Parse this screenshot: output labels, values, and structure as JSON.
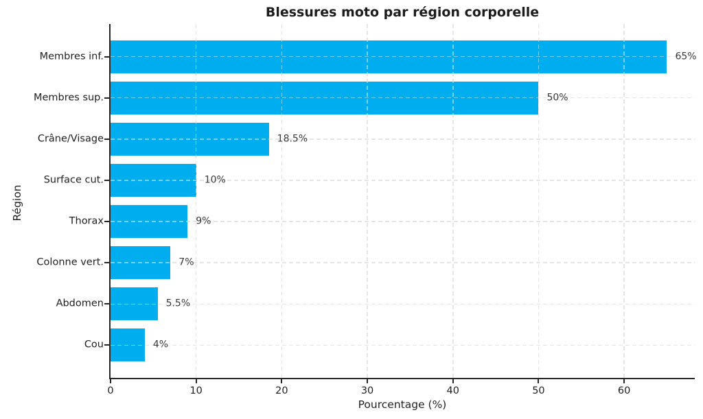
{
  "chart_data": {
    "type": "bar",
    "orientation": "horizontal",
    "title": "Blessures moto par région corporelle",
    "xlabel": "Pourcentage (%)",
    "ylabel": "Région",
    "categories": [
      "Membres inf.",
      "Membres sup.",
      "Crâne/Visage",
      "Surface cut.",
      "Thorax",
      "Colonne vert.",
      "Abdomen",
      "Cou"
    ],
    "values": [
      65,
      50,
      18.5,
      10,
      9,
      7,
      5.5,
      4
    ],
    "value_labels": [
      "65%",
      "50%",
      "18.5%",
      "10%",
      "9%",
      "7%",
      "5.5%",
      "4%"
    ],
    "x_ticks": [
      0,
      10,
      20,
      30,
      40,
      50,
      60
    ],
    "xlim": [
      0,
      68.25
    ],
    "grid": "dashed, both directions",
    "legend": "none",
    "bar_color": "#00AEEF",
    "text_color": "#1f1f1f",
    "value_label_color": "#3a3a3a",
    "background": "#ffffff"
  }
}
